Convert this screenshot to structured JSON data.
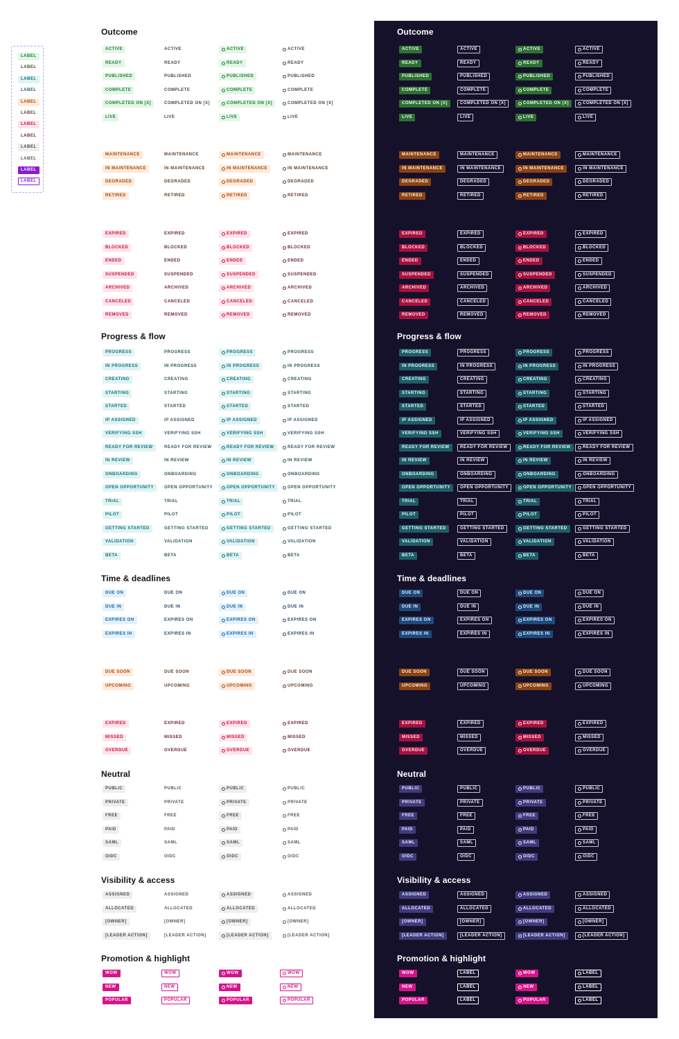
{
  "label_sample": {
    "items": [
      {
        "text": "LABEL",
        "style": "fill",
        "color": "green"
      },
      {
        "text": "LABEL",
        "style": "outline",
        "color": "green"
      },
      {
        "text": "LABEL",
        "style": "fill",
        "color": "teal"
      },
      {
        "text": "LABEL",
        "style": "outline",
        "color": "teal"
      },
      {
        "text": "LABEL",
        "style": "fill",
        "color": "orange"
      },
      {
        "text": "LABEL",
        "style": "outline",
        "color": "orange"
      },
      {
        "text": "LABEL",
        "style": "fill",
        "color": "red"
      },
      {
        "text": "LABEL",
        "style": "outline",
        "color": "red"
      },
      {
        "text": "LABEL",
        "style": "fill",
        "color": "gray"
      },
      {
        "text": "LABEL",
        "style": "outline",
        "color": "gray"
      },
      {
        "text": "LABEL",
        "style": "fill",
        "color": "purple"
      },
      {
        "text": "LABEL",
        "style": "outline",
        "color": "purple"
      }
    ]
  },
  "colors": {
    "panel_dark": "#15112a",
    "pink": "#d6148a",
    "purple": "#8a1ad8",
    "sample_border": "#b6a0ff"
  },
  "sections": [
    {
      "id": "outcome",
      "title": "Outcome",
      "groups": [
        {
          "color": "green",
          "items": [
            "ACTIVE",
            "READY",
            "PUBLISHED",
            "COMPLETE",
            "COMPLETED ON [X]",
            "LIVE"
          ]
        },
        {
          "color": "orange",
          "items": [
            "MAINTENANCE",
            "IN MAINTENANCE",
            "DEGRADED",
            "RETIRED"
          ]
        },
        {
          "color": "red",
          "items": [
            "EXPIRED",
            "BLOCKED",
            "ENDED",
            "SUSPENDED",
            "ARCHIVED",
            "CANCELED",
            "REMOVED"
          ]
        }
      ]
    },
    {
      "id": "progress",
      "title": "Progress & flow",
      "groups": [
        {
          "color": "teal",
          "items": [
            "PROGRESS",
            "IN PROGRESS",
            "CREATING",
            "STARTING",
            "STARTED",
            "IP ASSIGNED",
            "VERIFYING SSH",
            "READY FOR REVIEW",
            "IN REVIEW",
            "ONBOARDING",
            "OPEN OPPORTUNITY",
            "TRIAL",
            "PILOT",
            "GETTING STARTED",
            "VALIDATION",
            "BETA"
          ]
        }
      ]
    },
    {
      "id": "time",
      "title": "Time & deadlines",
      "groups": [
        {
          "color": "blue",
          "items": [
            "DUE ON",
            "DUE IN",
            "EXPIRES ON",
            "EXPIRES IN"
          ]
        },
        {
          "color": "orange",
          "items": [
            "DUE SOON",
            "UPCOMING"
          ]
        },
        {
          "color": "red",
          "items": [
            "EXPIRED",
            "MISSED",
            "OVERDUE"
          ]
        }
      ]
    },
    {
      "id": "neutral",
      "title": "Neutral",
      "groups": [
        {
          "color": "gray",
          "items": [
            "PUBLIC",
            "PRIVATE",
            "FREE",
            "PAID",
            "SAML",
            "OIDC"
          ]
        }
      ]
    },
    {
      "id": "visibility",
      "title": "Visibility & access",
      "groups": [
        {
          "color": "gray",
          "items": [
            "ASSIGNED",
            "ALLOCATED",
            "[OWNER]",
            "[LEADER ACTION]"
          ]
        }
      ]
    },
    {
      "id": "promotion",
      "title": "Promotion & highlight",
      "groups": [
        {
          "color": "pink",
          "items": [
            "WOW",
            "NEW",
            "POPULAR"
          ]
        }
      ]
    }
  ],
  "promotion_dark_outline_items": [
    "LABEL",
    "LABEL",
    "LABEL"
  ]
}
